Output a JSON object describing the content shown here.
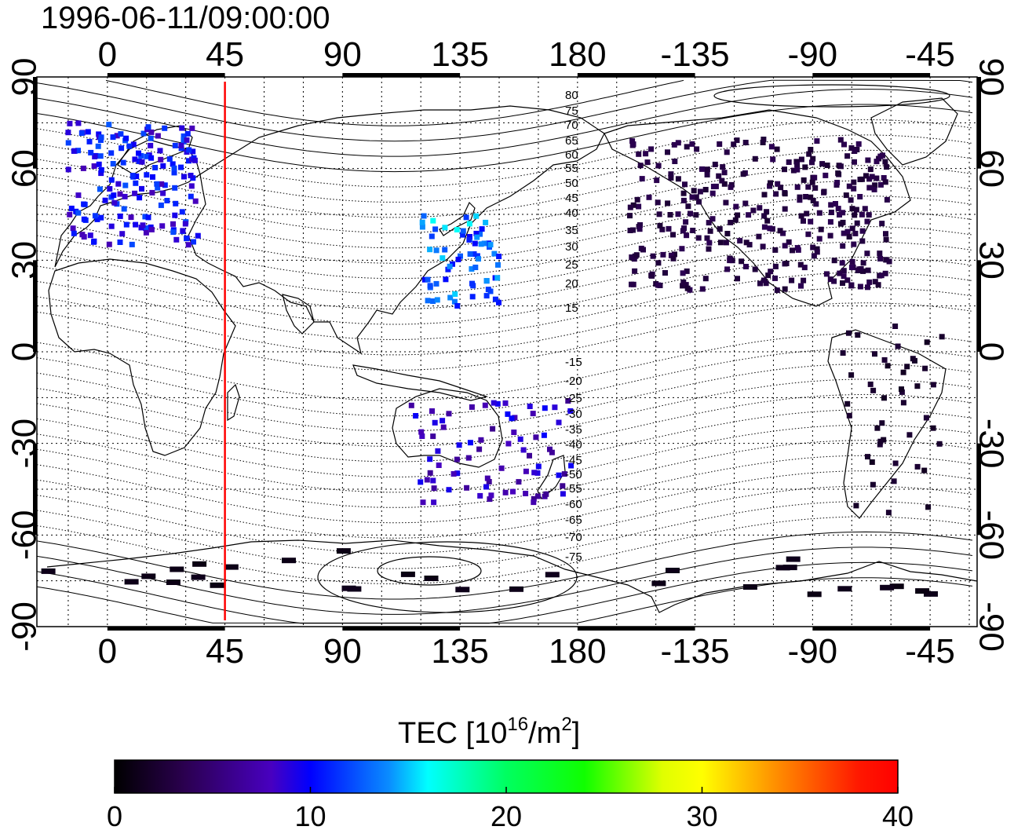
{
  "title": "1996-06-11/09:00:00",
  "map": {
    "top_tick_labels": [
      "0",
      "45",
      "90",
      "135",
      "180",
      "-135",
      "-90",
      "-45"
    ],
    "bottom_tick_labels": [
      "0",
      "45",
      "90",
      "135",
      "180",
      "-135",
      "-90",
      "-45"
    ],
    "left_tick_labels": [
      "90",
      "60",
      "30",
      "0",
      "-30",
      "-60",
      "-90"
    ],
    "right_tick_labels": [
      "90",
      "60",
      "30",
      "0",
      "-30",
      "-60",
      "-90"
    ],
    "contour_labels_north": [
      "80",
      "75",
      "70",
      "65",
      "60",
      "55",
      "50",
      "45",
      "40",
      "35",
      "30",
      "25",
      "20",
      "15"
    ],
    "contour_labels_south": [
      "-15",
      "-20",
      "-25",
      "-30",
      "-35",
      "-40",
      "-45",
      "-50",
      "-55",
      "-60",
      "-65",
      "-70",
      "-75"
    ],
    "marker_longitude_deg": 45,
    "marker_color": "#ff0000",
    "grid": true
  },
  "colorbar": {
    "title_main": "TEC  [10",
    "title_sup1": "16",
    "title_mid": "/m",
    "title_sup2": "2",
    "title_end": "]",
    "tick_labels": [
      "0",
      "10",
      "20",
      "30",
      "40"
    ],
    "range": [
      0,
      40
    ]
  },
  "chart_data": {
    "type": "heatmap",
    "title": "1996-06-11/09:00:00",
    "quantity": "TEC",
    "unit": "10^16/m^2",
    "value_range": [
      0,
      40
    ],
    "lat_range": [
      -90,
      90
    ],
    "lon_ticks": [
      0,
      45,
      90,
      135,
      180,
      -135,
      -90,
      -45
    ],
    "lat_ticks": [
      90,
      60,
      30,
      0,
      -30,
      -60,
      -90
    ],
    "regions": [
      {
        "region": "Europe",
        "lon": [
          -15,
          35
        ],
        "lat": [
          35,
          75
        ],
        "tec_approx": 10
      },
      {
        "region": "Japan / East Asia",
        "lon": [
          120,
          150
        ],
        "lat": [
          15,
          45
        ],
        "tec_approx": 13
      },
      {
        "region": "North America",
        "lon": [
          -160,
          -60
        ],
        "lat": [
          20,
          70
        ],
        "tec_approx": 3
      },
      {
        "region": "South America",
        "lon": [
          -80,
          -40
        ],
        "lat": [
          -55,
          10
        ],
        "tec_approx": 2
      },
      {
        "region": "Australia / New Zealand",
        "lon": [
          115,
          180
        ],
        "lat": [
          -50,
          -15
        ],
        "tec_approx": 8
      },
      {
        "region": "Antarctica",
        "lon": [
          -150,
          180
        ],
        "lat": [
          -80,
          -65
        ],
        "tec_approx": 1
      }
    ]
  }
}
